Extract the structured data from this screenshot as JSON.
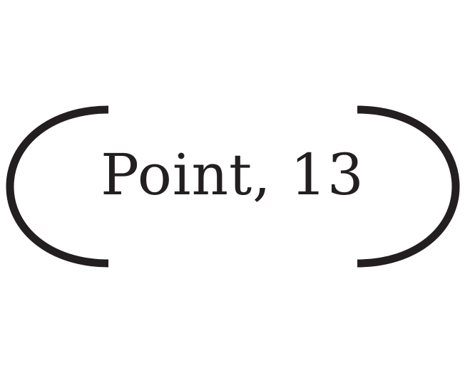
{
  "logo": {
    "text": "Point, 13",
    "color": "#231f20",
    "background": "#ffffff"
  }
}
